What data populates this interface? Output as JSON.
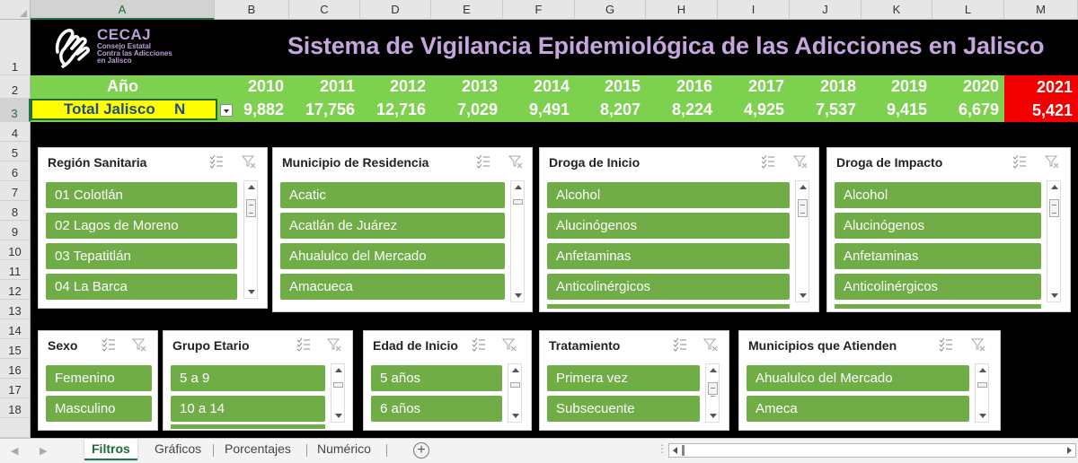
{
  "columns": [
    "A",
    "B",
    "C",
    "D",
    "E",
    "F",
    "G",
    "H",
    "I",
    "J",
    "K",
    "L",
    "M"
  ],
  "rows": [
    "1",
    "2",
    "3",
    "4",
    "5",
    "6",
    "7",
    "8",
    "9",
    "10",
    "11",
    "12",
    "13",
    "14",
    "15",
    "16",
    "17",
    "18"
  ],
  "logo": {
    "name": "CECAJ",
    "line1": "Consejo Estatal",
    "line2": "Contra las Adicciones",
    "line3": "en Jalisco"
  },
  "title": "Sistema de Vigilancia Epidemiológica de las Adicciones  en Jalisco",
  "year_label": "Año",
  "years": [
    "2010",
    "2011",
    "2012",
    "2013",
    "2014",
    "2015",
    "2016",
    "2017",
    "2018",
    "2019",
    "2020",
    "2021"
  ],
  "total_label": "Total Jalisco",
  "total_suffix": "N",
  "totals": [
    "9,882",
    "17,756",
    "12,716",
    "7,029",
    "9,491",
    "8,207",
    "8,224",
    "4,925",
    "7,537",
    "9,415",
    "6,679",
    "5,421"
  ],
  "colors": {
    "band_green": "#7ed04f",
    "slicer_item": "#70ad47",
    "highlight_red": "#f20000",
    "title_purple": "#c7a6df",
    "label_yellow": "#ffff00"
  },
  "slicers": {
    "region": {
      "title": "Región Sanitaria",
      "items": [
        "01 Colotlán",
        "02 Lagos de Moreno",
        "03 Tepatitlán",
        "04 La Barca"
      ]
    },
    "municipio": {
      "title": "Municipio de Residencia",
      "items": [
        "Acatic",
        "Acatlán de Juárez",
        "Ahualulco del Mercado",
        "Amacueca"
      ]
    },
    "droga_inicio": {
      "title": "Droga de Inicio",
      "items": [
        "Alcohol",
        "Alucinógenos",
        "Anfetaminas",
        "Anticolinérgicos"
      ]
    },
    "droga_impacto": {
      "title": "Droga de Impacto",
      "items": [
        "Alcohol",
        "Alucinógenos",
        "Anfetaminas",
        "Anticolinérgicos"
      ]
    },
    "sexo": {
      "title": "Sexo",
      "items": [
        "Femenino",
        "Masculino"
      ]
    },
    "grupo_etario": {
      "title": "Grupo Etario",
      "items": [
        "5 a 9",
        "10 a 14"
      ]
    },
    "edad_inicio": {
      "title": "Edad de Inicio",
      "items": [
        "5 años",
        "6 años"
      ]
    },
    "tratamiento": {
      "title": "Tratamiento",
      "items": [
        "Primera vez",
        "Subsecuente"
      ]
    },
    "municipios_atienden": {
      "title": "Municipios que Atienden",
      "items": [
        "Ahualulco del Mercado",
        "Ameca"
      ]
    }
  },
  "sheet_tabs": [
    "Filtros",
    "Gráficos",
    "Porcentajes",
    "Numérico"
  ],
  "active_tab": "Filtros",
  "icons": {
    "multiselect": "multi-select-icon",
    "clear": "clear-filter-icon",
    "add_sheet": "plus-circle-icon"
  }
}
